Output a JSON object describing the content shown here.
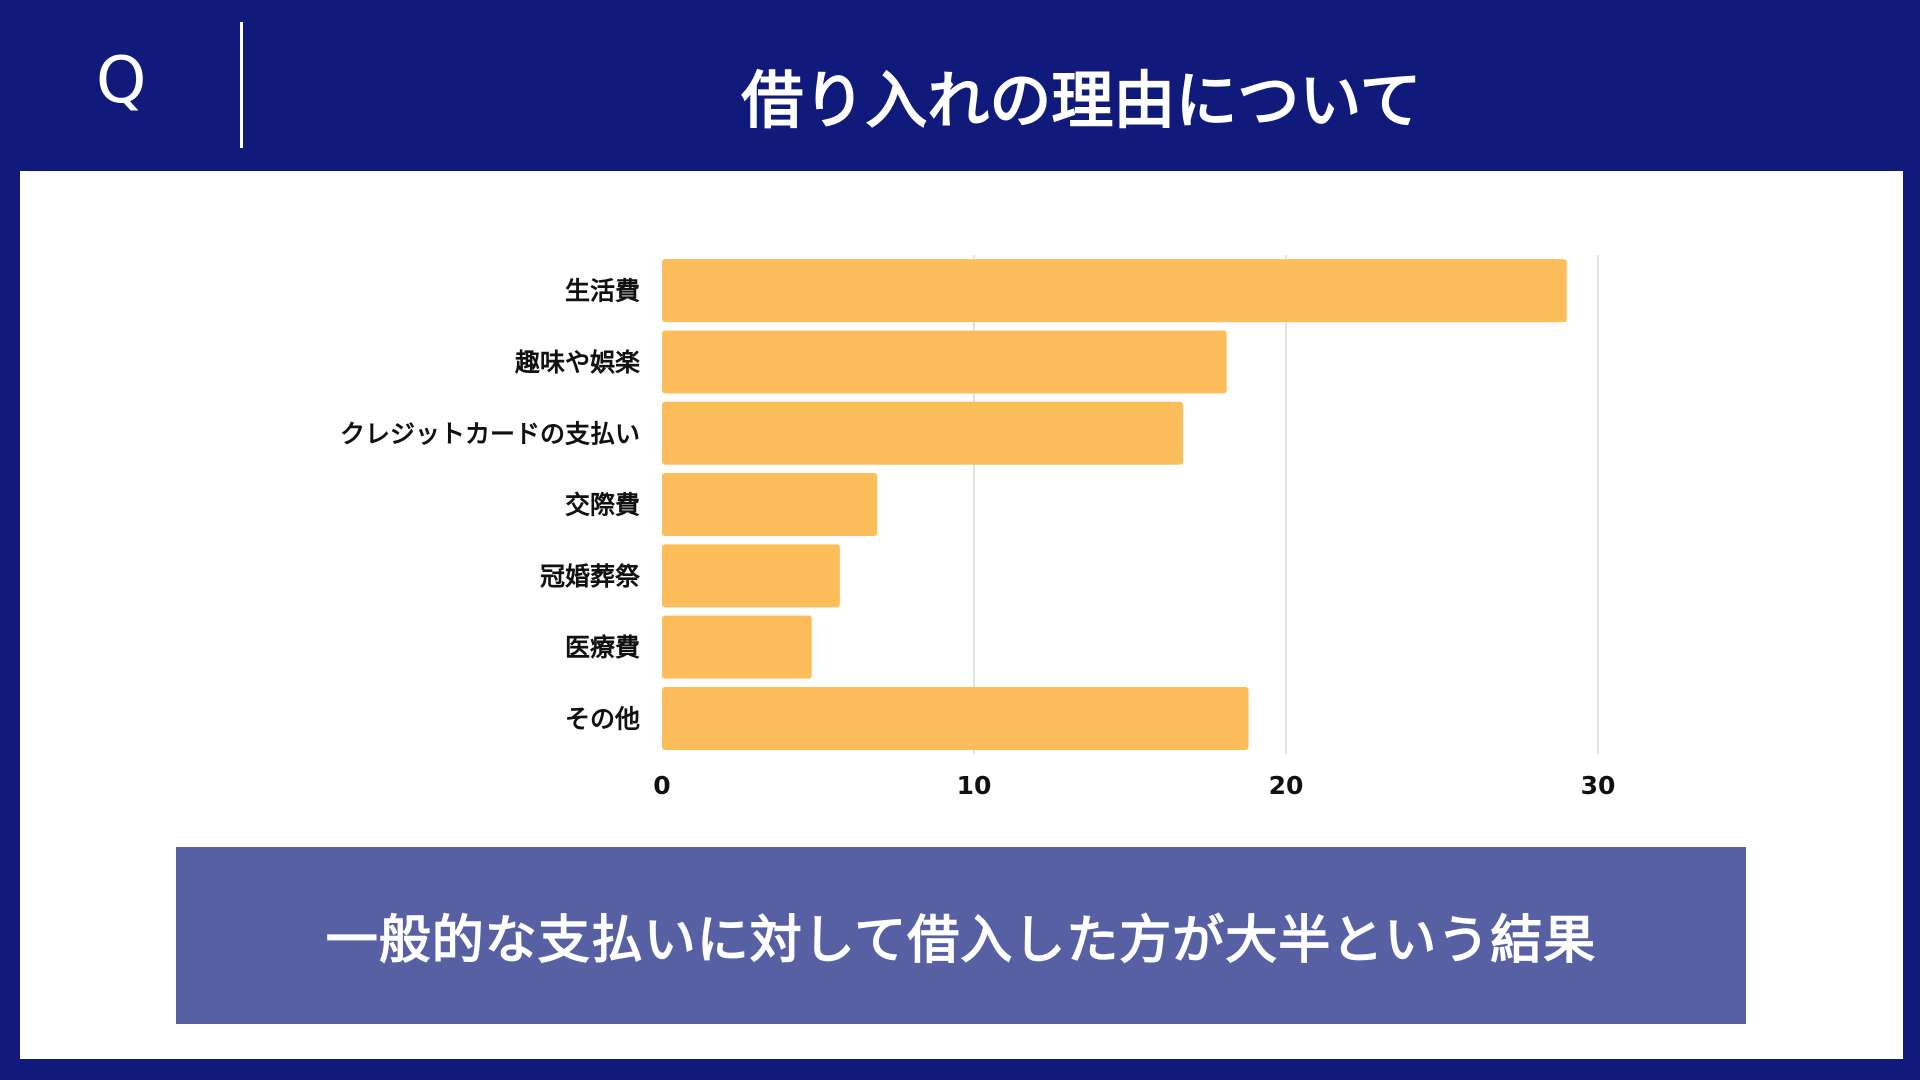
{
  "header": {
    "q_label": "Q",
    "title": "借り入れの理由について"
  },
  "banner": {
    "text": "一般的な支払いに対して借入した方が大半という結果"
  },
  "colors": {
    "background": "#0f1a7a",
    "bar": "#fdbd5b",
    "banner": "#5860a4",
    "grid": "#d9d9d9"
  },
  "chart_data": {
    "type": "bar",
    "orientation": "horizontal",
    "categories": [
      "生活費",
      "趣味や娯楽",
      "クレジットカードの支払い",
      "交際費",
      "冠婚葬祭",
      "医療費",
      "その他"
    ],
    "values": [
      29,
      18.1,
      16.7,
      6.9,
      5.7,
      4.8,
      18.8
    ],
    "xticks": [
      "0",
      "10",
      "20",
      "30"
    ],
    "xlim": [
      0,
      30
    ],
    "grid": true,
    "legend": "none"
  }
}
